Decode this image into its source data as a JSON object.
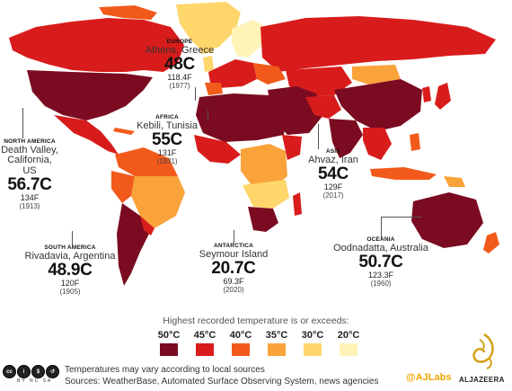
{
  "map": {
    "palette": {
      "50C": "#7a0b20",
      "45C": "#d81c1c",
      "40C": "#f25a1b",
      "35C": "#f9a33a",
      "30C": "#ffd66b",
      "20C": "#fff3b8"
    }
  },
  "records": {
    "europe": {
      "region": "EUROPE",
      "place": "Athens, Greece",
      "celsius": "48C",
      "fahrenheit": "118.4F",
      "year": "(1977)"
    },
    "africa": {
      "region": "AFRICA",
      "place": "Kebili, Tunisia",
      "celsius": "55C",
      "fahrenheit": "131F",
      "year": "(1931)"
    },
    "north_america": {
      "region": "NORTH AMERICA",
      "place": "Death Valley, California, US",
      "celsius": "56.7C",
      "fahrenheit": "134F",
      "year": "(1913)"
    },
    "asia": {
      "region": "ASIA",
      "place": "Ahvaz, Iran",
      "celsius": "54C",
      "fahrenheit": "129F",
      "year": "(2017)"
    },
    "south_america": {
      "region": "SOUTH AMERICA",
      "place": "Rivadavia, Argentina",
      "celsius": "48.9C",
      "fahrenheit": "120F",
      "year": "(1905)"
    },
    "antarctica": {
      "region": "ANTARCTICA",
      "place": "Seymour Island",
      "celsius": "20.7C",
      "fahrenheit": "69.3F",
      "year": "(2020)"
    },
    "oceania": {
      "region": "OCEANIA",
      "place": "Oodnadatta, Australia",
      "celsius": "50.7C",
      "fahrenheit": "123.3F",
      "year": "(1960)"
    }
  },
  "legend": {
    "title": "Highest recorded temperature is or exceeds:",
    "items": [
      {
        "label": "50°C",
        "color": "#7a0b20"
      },
      {
        "label": "45°C",
        "color": "#d81c1c"
      },
      {
        "label": "40°C",
        "color": "#f25a1b"
      },
      {
        "label": "35°C",
        "color": "#f9a33a"
      },
      {
        "label": "30°C",
        "color": "#ffd66b"
      },
      {
        "label": "20°C",
        "color": "#fff3b8"
      }
    ]
  },
  "footer": {
    "note": "Temperatures may vary according to local sources",
    "sources": "Sources: WeatherBase, Automated Surface Observing System, news agencies",
    "license": "BY NC SA",
    "handle": "@AJLabs",
    "brand": "ALJAZEERA"
  }
}
